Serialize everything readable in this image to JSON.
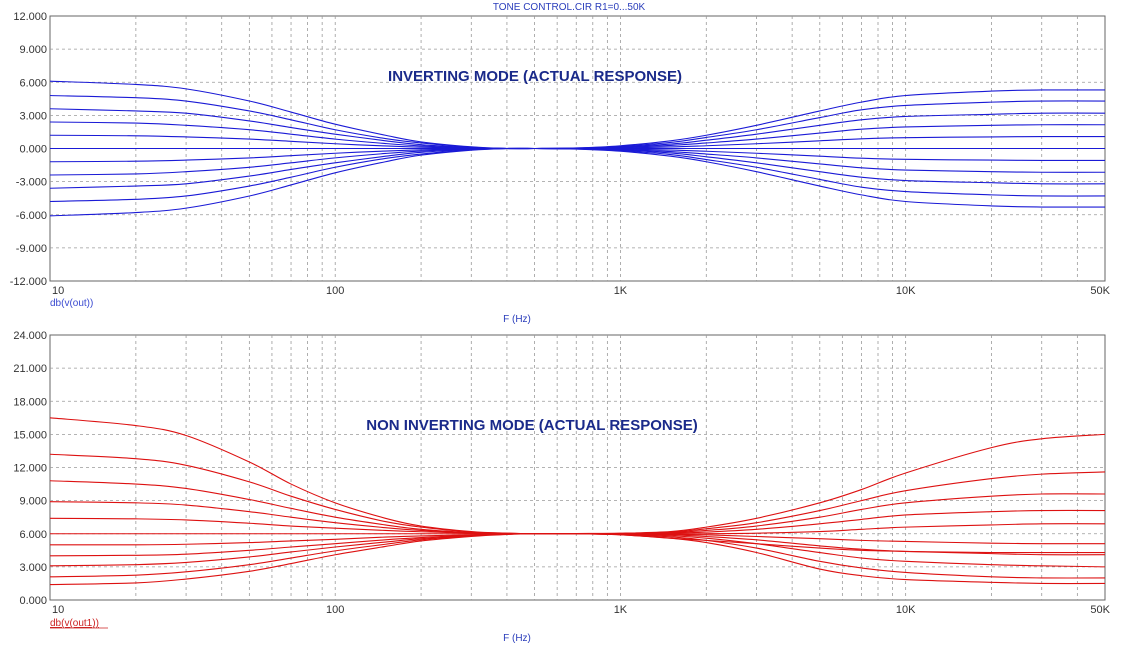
{
  "window_title": "TONE CONTROL.CIR R1=0...50K",
  "chart_data": [
    {
      "type": "line",
      "annotation": "INVERTING MODE (ACTUAL RESPONSE)",
      "expression": "db(v(out))",
      "xlabel": "F (Hz)",
      "xscale": "log",
      "xlim": [
        10,
        50000
      ],
      "x_ticks": [
        {
          "value": 10,
          "label": "10"
        },
        {
          "value": 100,
          "label": "100"
        },
        {
          "value": 1000,
          "label": "1K"
        },
        {
          "value": 10000,
          "label": "10K"
        },
        {
          "value": 50000,
          "label": "50K"
        }
      ],
      "ylim": [
        -12,
        12
      ],
      "y_ticks": [
        {
          "value": 12,
          "label": "12.000"
        },
        {
          "value": 9,
          "label": "9.000"
        },
        {
          "value": 6,
          "label": "6.000"
        },
        {
          "value": 3,
          "label": "3.000"
        },
        {
          "value": 0,
          "label": "0.000"
        },
        {
          "value": -3,
          "label": "-3.000"
        },
        {
          "value": -6,
          "label": "-6.000"
        },
        {
          "value": -9,
          "label": "-9.000"
        },
        {
          "value": -12,
          "label": "-12.000"
        }
      ],
      "grid": true,
      "color": "#1a1ad6",
      "x": [
        10,
        20,
        30,
        50,
        70,
        100,
        150,
        200,
        300,
        400,
        500,
        700,
        1000,
        1500,
        2000,
        3000,
        5000,
        7000,
        10000,
        20000,
        30000,
        50000
      ],
      "series": [
        {
          "values": [
            6.1,
            5.8,
            5.4,
            4.3,
            3.3,
            2.2,
            1.2,
            0.6,
            0.15,
            0.0,
            0.0,
            0.05,
            0.25,
            0.7,
            1.2,
            2.1,
            3.4,
            4.2,
            4.8,
            5.2,
            5.3,
            5.3
          ]
        },
        {
          "values": [
            4.8,
            4.6,
            4.3,
            3.4,
            2.6,
            1.7,
            0.9,
            0.5,
            0.12,
            0.0,
            0.0,
            0.04,
            0.2,
            0.55,
            1.0,
            1.7,
            2.8,
            3.5,
            3.9,
            4.2,
            4.3,
            4.3
          ]
        },
        {
          "values": [
            3.6,
            3.4,
            3.2,
            2.5,
            1.9,
            1.3,
            0.7,
            0.35,
            0.09,
            0.0,
            0.0,
            0.03,
            0.15,
            0.4,
            0.75,
            1.3,
            2.1,
            2.6,
            2.9,
            3.1,
            3.2,
            3.2
          ]
        },
        {
          "values": [
            2.4,
            2.3,
            2.1,
            1.7,
            1.3,
            0.85,
            0.45,
            0.23,
            0.06,
            0.0,
            0.0,
            0.02,
            0.1,
            0.28,
            0.5,
            0.85,
            1.4,
            1.75,
            1.95,
            2.1,
            2.15,
            2.15
          ]
        },
        {
          "values": [
            1.2,
            1.15,
            1.05,
            0.85,
            0.65,
            0.43,
            0.23,
            0.12,
            0.03,
            0.0,
            0.0,
            0.01,
            0.05,
            0.14,
            0.25,
            0.43,
            0.7,
            0.88,
            0.98,
            1.05,
            1.08,
            1.08
          ]
        },
        {
          "values": [
            0,
            0,
            0,
            0,
            0,
            0,
            0,
            0,
            0,
            0,
            0,
            0,
            0,
            0,
            0,
            0,
            0,
            0,
            0,
            0,
            0,
            0
          ]
        },
        {
          "values": [
            -1.2,
            -1.15,
            -1.05,
            -0.85,
            -0.65,
            -0.43,
            -0.23,
            -0.12,
            -0.03,
            0.0,
            0.0,
            -0.01,
            -0.05,
            -0.14,
            -0.25,
            -0.43,
            -0.7,
            -0.88,
            -0.98,
            -1.05,
            -1.08,
            -1.08
          ]
        },
        {
          "values": [
            -2.4,
            -2.3,
            -2.1,
            -1.7,
            -1.3,
            -0.85,
            -0.45,
            -0.23,
            -0.06,
            0.0,
            0.0,
            -0.02,
            -0.1,
            -0.28,
            -0.5,
            -0.85,
            -1.4,
            -1.75,
            -1.95,
            -2.1,
            -2.15,
            -2.15
          ]
        },
        {
          "values": [
            -3.6,
            -3.4,
            -3.2,
            -2.5,
            -1.9,
            -1.3,
            -0.7,
            -0.35,
            -0.09,
            0.0,
            0.0,
            -0.03,
            -0.15,
            -0.4,
            -0.75,
            -1.3,
            -2.1,
            -2.6,
            -2.9,
            -3.1,
            -3.2,
            -3.2
          ]
        },
        {
          "values": [
            -4.8,
            -4.6,
            -4.3,
            -3.4,
            -2.6,
            -1.7,
            -0.9,
            -0.5,
            -0.12,
            0.0,
            0.0,
            -0.04,
            -0.2,
            -0.55,
            -1.0,
            -1.7,
            -2.8,
            -3.5,
            -3.9,
            -4.2,
            -4.3,
            -4.3
          ]
        },
        {
          "values": [
            -6.1,
            -5.8,
            -5.4,
            -4.3,
            -3.3,
            -2.2,
            -1.2,
            -0.6,
            -0.15,
            0.0,
            0.0,
            -0.05,
            -0.25,
            -0.7,
            -1.2,
            -2.1,
            -3.4,
            -4.2,
            -4.8,
            -5.2,
            -5.3,
            -5.3
          ]
        }
      ]
    },
    {
      "type": "line",
      "annotation": "NON INVERTING MODE (ACTUAL RESPONSE)",
      "expression": "db(v(out1))",
      "xlabel": "F (Hz)",
      "xscale": "log",
      "xlim": [
        10,
        50000
      ],
      "x_ticks": [
        {
          "value": 10,
          "label": "10"
        },
        {
          "value": 100,
          "label": "100"
        },
        {
          "value": 1000,
          "label": "1K"
        },
        {
          "value": 10000,
          "label": "10K"
        },
        {
          "value": 50000,
          "label": "50K"
        }
      ],
      "ylim": [
        0,
        24
      ],
      "y_ticks": [
        {
          "value": 24,
          "label": "24.000"
        },
        {
          "value": 21,
          "label": "21.000"
        },
        {
          "value": 18,
          "label": "18.000"
        },
        {
          "value": 15,
          "label": "15.000"
        },
        {
          "value": 12,
          "label": "12.000"
        },
        {
          "value": 9,
          "label": "9.000"
        },
        {
          "value": 6,
          "label": "6.000"
        },
        {
          "value": 3,
          "label": "3.000"
        },
        {
          "value": 0,
          "label": "0.000"
        }
      ],
      "grid": true,
      "color": "#dd1111",
      "x": [
        10,
        20,
        30,
        50,
        70,
        100,
        150,
        200,
        300,
        400,
        500,
        700,
        1000,
        1500,
        2000,
        3000,
        5000,
        7000,
        10000,
        20000,
        30000,
        50000
      ],
      "series": [
        {
          "values": [
            16.5,
            15.8,
            14.9,
            12.5,
            10.5,
            8.8,
            7.4,
            6.7,
            6.2,
            6.05,
            6.0,
            6.0,
            5.9,
            5.6,
            5.4,
            5.1,
            4.7,
            4.5,
            4.4,
            4.3,
            4.3,
            4.3
          ]
        },
        {
          "values": [
            13.2,
            12.8,
            12.2,
            10.7,
            9.4,
            8.2,
            7.1,
            6.6,
            6.15,
            6.05,
            6.0,
            6.02,
            6.05,
            6.2,
            6.6,
            7.4,
            8.8,
            10.0,
            11.5,
            13.8,
            14.6,
            15.0
          ]
        },
        {
          "values": [
            10.8,
            10.5,
            10.1,
            9.1,
            8.3,
            7.5,
            6.8,
            6.4,
            6.1,
            6.02,
            6.0,
            6.01,
            6.03,
            6.15,
            6.45,
            7.0,
            8.1,
            9.0,
            9.9,
            11.0,
            11.4,
            11.6
          ]
        },
        {
          "values": [
            8.9,
            8.8,
            8.6,
            8.0,
            7.5,
            7.0,
            6.55,
            6.3,
            6.08,
            6.02,
            6.0,
            6.01,
            6.02,
            6.1,
            6.3,
            6.7,
            7.5,
            8.2,
            8.8,
            9.4,
            9.6,
            9.6
          ]
        },
        {
          "values": [
            7.4,
            7.35,
            7.25,
            6.95,
            6.7,
            6.5,
            6.3,
            6.18,
            6.06,
            6.02,
            6.0,
            6.0,
            6.0,
            6.05,
            6.15,
            6.4,
            6.9,
            7.3,
            7.7,
            8.0,
            8.1,
            8.1
          ]
        },
        {
          "values": [
            6.0,
            6.0,
            6.0,
            6.0,
            6.0,
            6.0,
            6.0,
            6.0,
            6.0,
            6.0,
            6.0,
            6.0,
            6.0,
            6.0,
            6.0,
            6.05,
            6.2,
            6.4,
            6.6,
            6.8,
            6.9,
            6.9
          ]
        },
        {
          "values": [
            5.0,
            5.0,
            5.05,
            5.2,
            5.35,
            5.5,
            5.7,
            5.8,
            5.92,
            5.98,
            6.0,
            6.0,
            6.0,
            5.95,
            5.9,
            5.75,
            5.55,
            5.4,
            5.3,
            5.15,
            5.1,
            5.1
          ]
        },
        {
          "values": [
            4.0,
            4.05,
            4.15,
            4.5,
            4.8,
            5.1,
            5.45,
            5.65,
            5.88,
            5.97,
            6.0,
            6.0,
            5.98,
            5.9,
            5.75,
            5.45,
            4.9,
            4.6,
            4.4,
            4.2,
            4.1,
            4.1
          ]
        },
        {
          "values": [
            3.1,
            3.2,
            3.4,
            3.9,
            4.35,
            4.8,
            5.25,
            5.55,
            5.83,
            5.96,
            6.0,
            6.0,
            5.96,
            5.82,
            5.6,
            5.1,
            4.3,
            3.8,
            3.5,
            3.2,
            3.1,
            3.0
          ]
        },
        {
          "values": [
            2.1,
            2.25,
            2.55,
            3.2,
            3.8,
            4.45,
            5.05,
            5.45,
            5.8,
            5.95,
            6.0,
            6.0,
            5.93,
            5.72,
            5.4,
            4.7,
            3.5,
            2.9,
            2.5,
            2.1,
            2.0,
            2.0
          ]
        },
        {
          "values": [
            1.4,
            1.55,
            1.9,
            2.6,
            3.3,
            4.1,
            4.85,
            5.35,
            5.76,
            5.94,
            6.0,
            6.0,
            5.9,
            5.6,
            5.2,
            4.3,
            2.8,
            2.2,
            1.85,
            1.6,
            1.5,
            1.5
          ]
        }
      ]
    }
  ]
}
